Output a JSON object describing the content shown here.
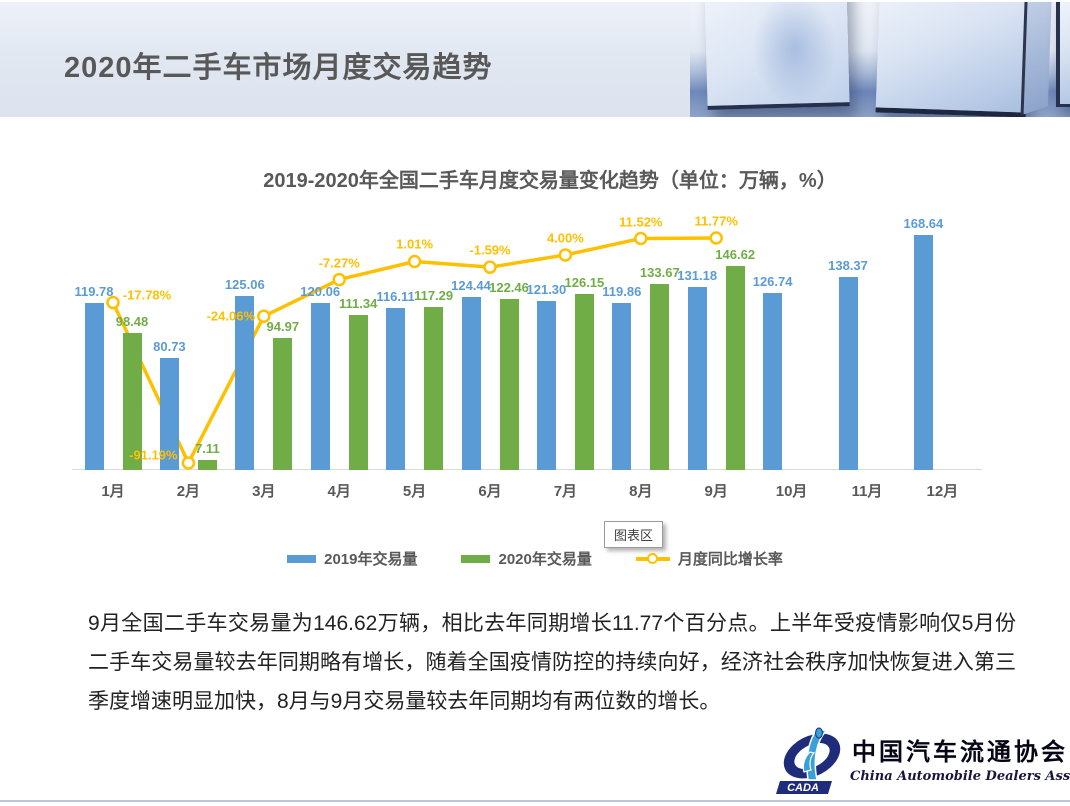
{
  "header": {
    "title": "2020年二手车市场月度交易趋势"
  },
  "chart": {
    "title": "2019-2020年全国二手车月度交易量变化趋势（单位：万辆，%）",
    "tooltip": "图表区"
  },
  "chart_data": {
    "type": "bar+line",
    "title": "2019-2020年全国二手车月度交易量变化趋势",
    "unit": "万辆，%",
    "categories": [
      "1月",
      "2月",
      "3月",
      "4月",
      "5月",
      "6月",
      "7月",
      "8月",
      "9月",
      "10月",
      "11月",
      "12月"
    ],
    "series": [
      {
        "name": "2019年交易量",
        "type": "bar",
        "color": "#5B9BD5",
        "values": [
          "119.78",
          "80.73",
          "125.06",
          "120.06",
          "116.11",
          "124.44",
          "121.30",
          "119.86",
          "131.18",
          "126.74",
          "138.37",
          "168.64"
        ]
      },
      {
        "name": "2020年交易量",
        "type": "bar",
        "color": "#70AD47",
        "values": [
          "98.48",
          "7.11",
          "94.97",
          "111.34",
          "117.29",
          "122.46",
          "126.15",
          "133.67",
          "146.62",
          null,
          null,
          null
        ]
      },
      {
        "name": "月度同比增长率",
        "type": "line",
        "color": "#FFC000",
        "values": [
          "-17.78%",
          "-91.19%",
          "-24.06%",
          "-7.27%",
          "1.01%",
          "-1.59%",
          "4.00%",
          "11.52%",
          "11.77%",
          null,
          null,
          null
        ]
      }
    ],
    "value_axis": {
      "min": 0,
      "implied_max": 185,
      "gridlines": false
    },
    "secondary_axis": {
      "unit": "%",
      "implied_range": [
        -100,
        20
      ]
    },
    "legend_position": "bottom"
  },
  "commentary": "9月全国二手车交易量为146.62万辆，相比去年同期增长11.77个百分点。上半年受疫情影响仅5月份二手车交易量较去年同期略有增长，随着全国疫情防控的持续向好，经济社会秩序加快恢复进入第三季度增速明显加快，8月与9月交易量较去年同期均有两位数的增长。",
  "logo": {
    "abbr": "CADA",
    "chinese": "中国汽车流通协会",
    "english": "China Automobile Dealers Association"
  }
}
